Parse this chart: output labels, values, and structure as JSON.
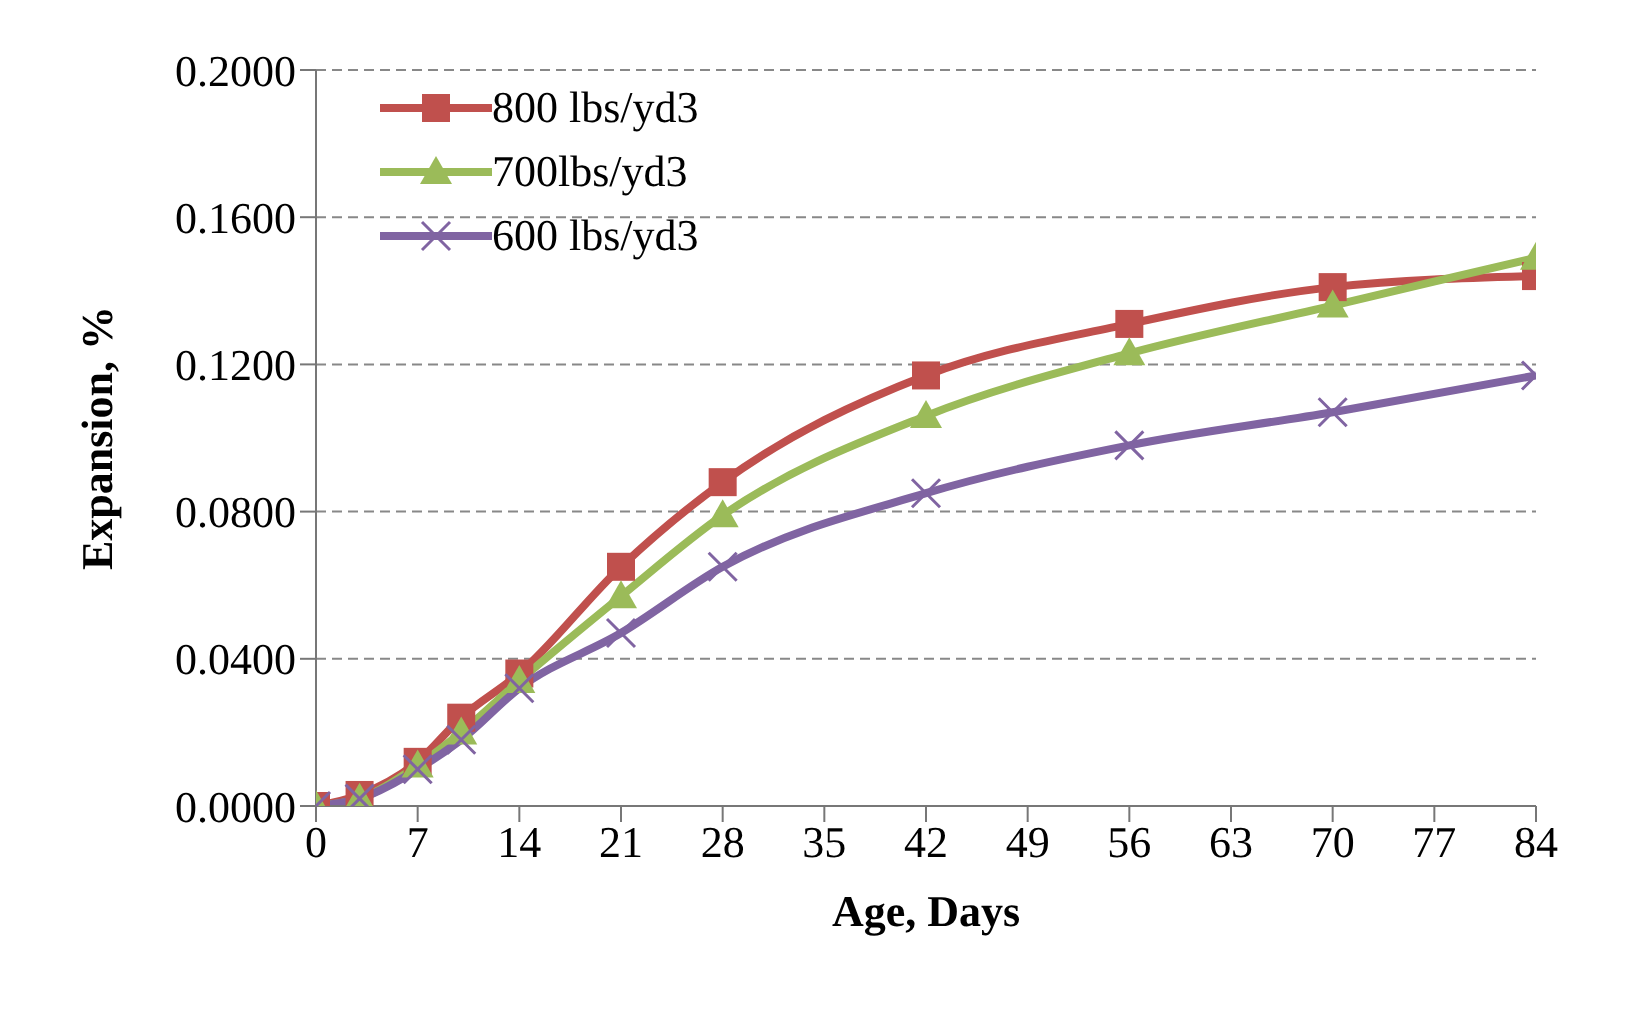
{
  "chart_data": {
    "type": "line",
    "xlabel": "Age, Days",
    "ylabel": "Expansion, %",
    "x": [
      0,
      3,
      7,
      10,
      14,
      21,
      28,
      42,
      56,
      70,
      84
    ],
    "series": [
      {
        "name": "800 lbs/yd3",
        "color": "#c0504d",
        "marker": "square",
        "values": [
          0,
          0.003,
          0.012,
          0.024,
          0.036,
          0.065,
          0.088,
          0.117,
          0.131,
          0.141,
          0.144
        ]
      },
      {
        "name": "700lbs/yd3",
        "color": "#9bbb59",
        "marker": "triangle",
        "values": [
          0,
          0.002,
          0.011,
          0.02,
          0.034,
          0.057,
          0.079,
          0.106,
          0.123,
          0.136,
          0.149
        ]
      },
      {
        "name": "600 lbs/yd3",
        "color": "#8064a2",
        "marker": "cross",
        "values": [
          0,
          0.002,
          0.01,
          0.018,
          0.032,
          0.047,
          0.065,
          0.085,
          0.098,
          0.107,
          0.117
        ]
      }
    ],
    "xlim": [
      0,
      84
    ],
    "xticks": [
      0,
      7,
      14,
      21,
      28,
      35,
      42,
      49,
      56,
      63,
      70,
      77,
      84
    ],
    "ylim": [
      0,
      0.2
    ],
    "yticks": [
      {
        "value": 0,
        "label": "0.0000"
      },
      {
        "value": 0.04,
        "label": "0.0400"
      },
      {
        "value": 0.08,
        "label": "0.0800"
      },
      {
        "value": 0.12,
        "label": "0.1200"
      },
      {
        "value": 0.16,
        "label": "0.1600"
      },
      {
        "value": 0.2,
        "label": "0.2000"
      }
    ],
    "grid": "y",
    "legend": "top left",
    "line_style": "solid"
  }
}
